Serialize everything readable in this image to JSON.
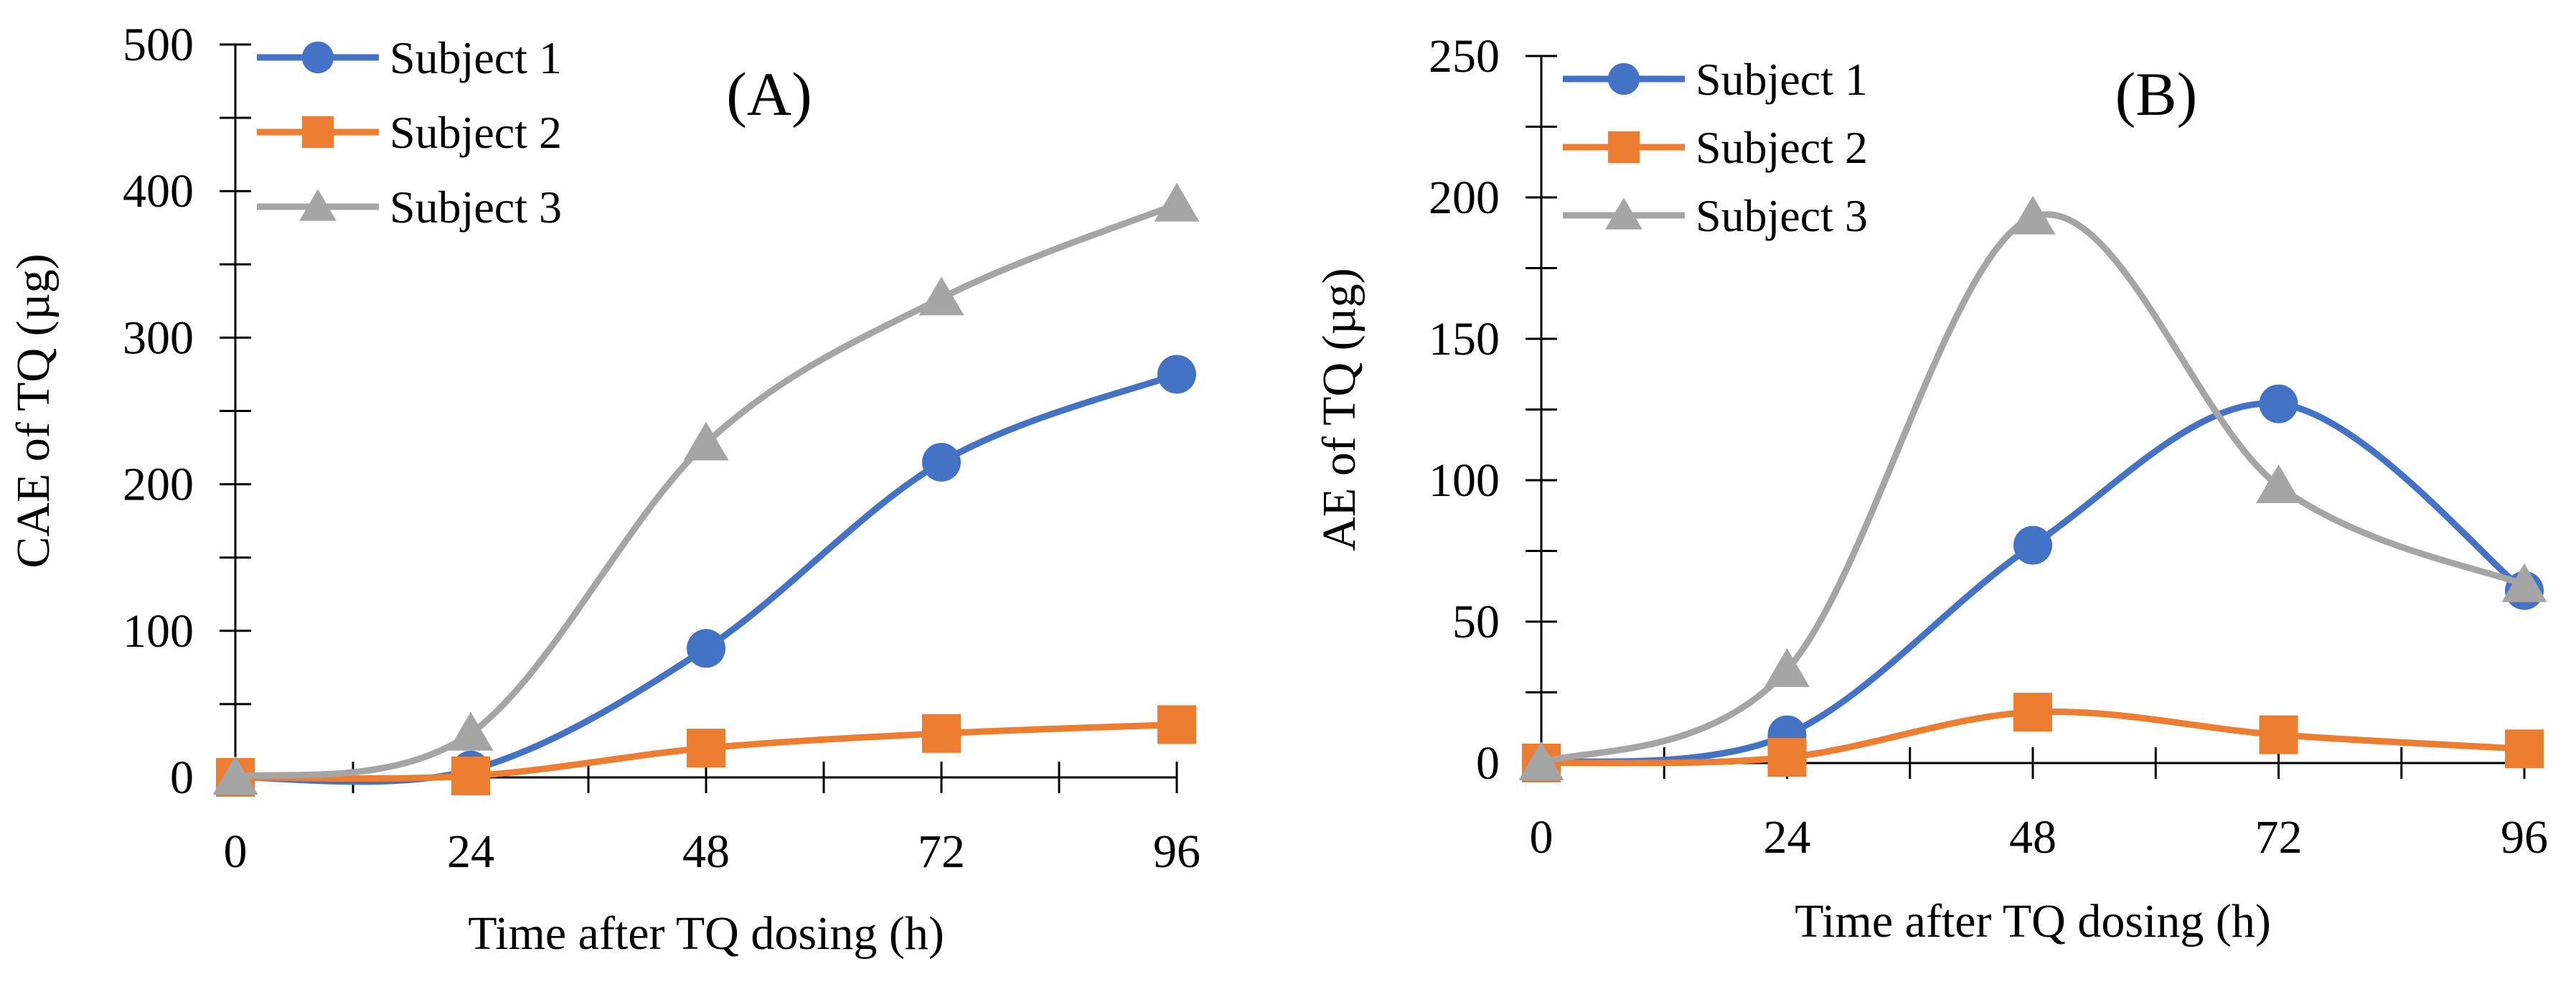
{
  "chart_data": [
    {
      "type": "line",
      "panel_label": "(A)",
      "xlabel": "Time after TQ dosing (h)",
      "ylabel": "CAE of TQ (µg)",
      "x": [
        0,
        24,
        48,
        72,
        96
      ],
      "xlim": [
        0,
        96
      ],
      "ylim": [
        0,
        500
      ],
      "xticks": [
        "0",
        "24",
        "48",
        "72",
        "96"
      ],
      "yticks": [
        "0",
        "100",
        "200",
        "300",
        "400",
        "500"
      ],
      "smooth": true,
      "grid": false,
      "legend_position": "top-left",
      "series": [
        {
          "name": "Subject 1",
          "marker": "circle",
          "color": "#4472C4",
          "values": [
            0,
            5,
            88,
            215,
            275
          ]
        },
        {
          "name": "Subject 2",
          "marker": "square",
          "color": "#ED7D31",
          "values": [
            0,
            1,
            20,
            30,
            36
          ]
        },
        {
          "name": "Subject 3",
          "marker": "triangle",
          "color": "#A5A5A5",
          "values": [
            0,
            30,
            228,
            327,
            391
          ]
        }
      ]
    },
    {
      "type": "line",
      "panel_label": "(B)",
      "xlabel": "Time after TQ dosing (h)",
      "ylabel": "AE of TQ (µg)",
      "x": [
        0,
        24,
        48,
        72,
        96
      ],
      "xlim": [
        0,
        96
      ],
      "ylim": [
        0,
        250
      ],
      "xticks": [
        "0",
        "24",
        "48",
        "72",
        "96"
      ],
      "yticks": [
        "0",
        "50",
        "100",
        "150",
        "200",
        "250"
      ],
      "smooth": true,
      "grid": false,
      "legend_position": "top-left",
      "series": [
        {
          "name": "Subject 1",
          "marker": "circle",
          "color": "#4472C4",
          "values": [
            0,
            10,
            77,
            127,
            61
          ]
        },
        {
          "name": "Subject 2",
          "marker": "square",
          "color": "#ED7D31",
          "values": [
            0,
            2,
            18,
            10,
            5
          ]
        },
        {
          "name": "Subject 3",
          "marker": "triangle",
          "color": "#A5A5A5",
          "values": [
            0,
            33,
            193,
            98,
            63
          ]
        }
      ]
    }
  ]
}
